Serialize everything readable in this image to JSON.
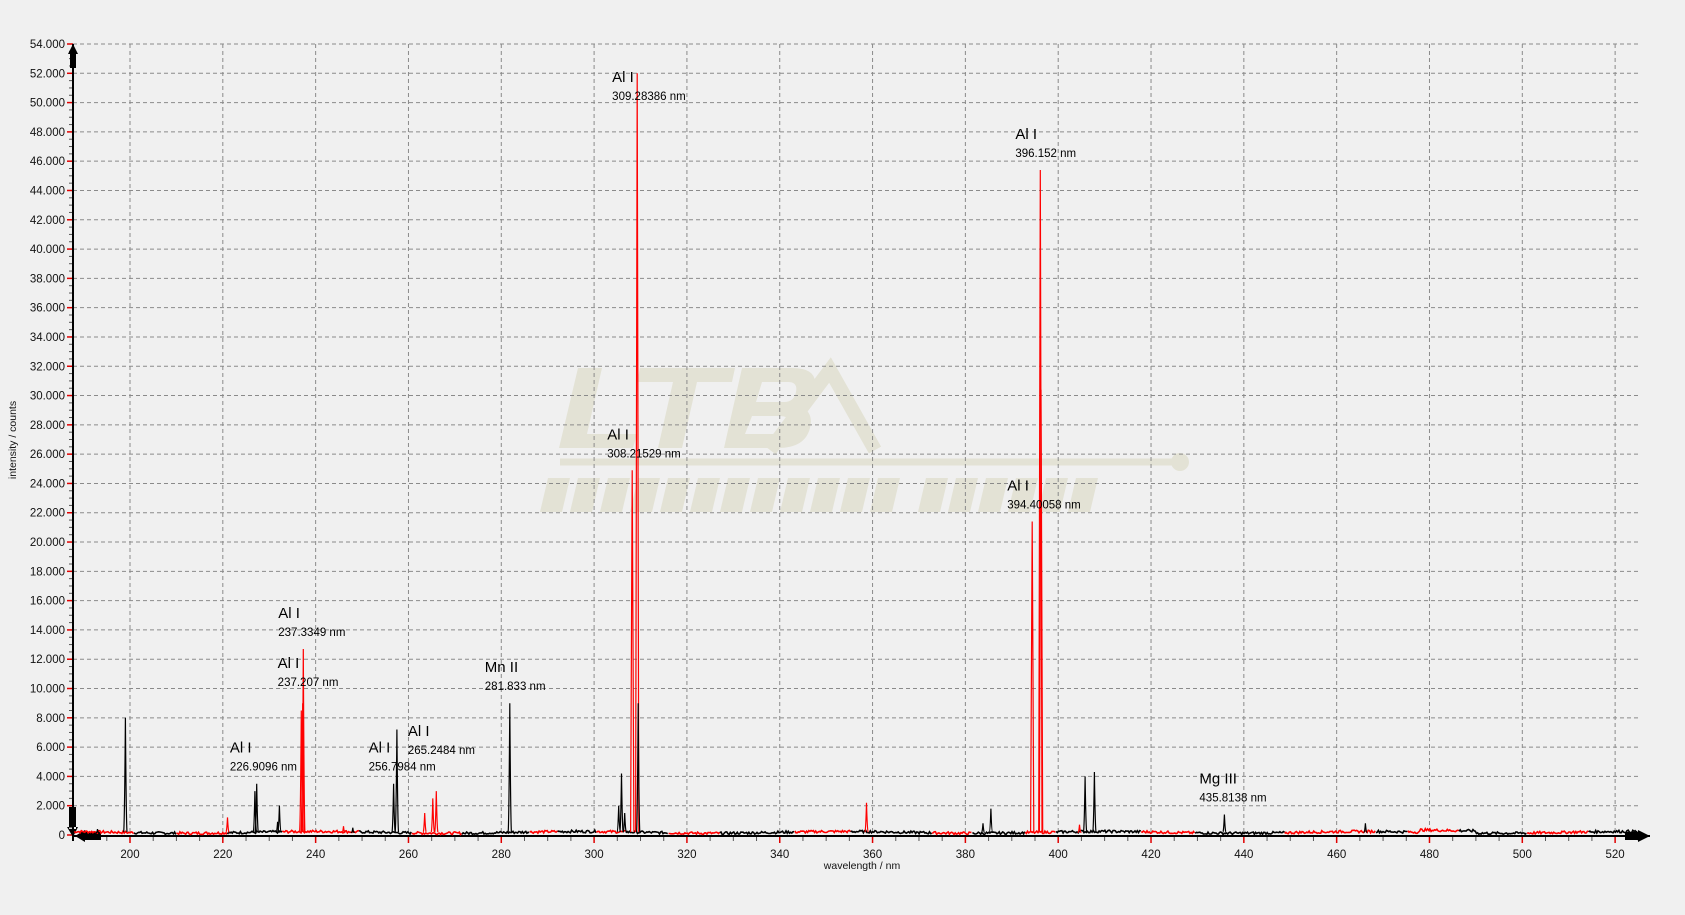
{
  "chart_data": {
    "type": "line",
    "title": "",
    "xlabel": "wavelength / nm",
    "ylabel": "intensity / counts",
    "xlim": [
      188,
      526
    ],
    "ylim": [
      0,
      54000
    ],
    "x_ticks": [
      200,
      220,
      240,
      260,
      280,
      300,
      320,
      340,
      360,
      380,
      400,
      420,
      440,
      460,
      480,
      500,
      520
    ],
    "y_ticks": [
      "0",
      "2.000",
      "4.000",
      "6.000",
      "8.000",
      "10.000",
      "12.000",
      "14.000",
      "16.000",
      "18.000",
      "20.000",
      "22.000",
      "24.000",
      "26.000",
      "28.000",
      "30.000",
      "32.000",
      "34.000",
      "36.000",
      "38.000",
      "40.000",
      "42.000",
      "44.000",
      "46.000",
      "48.000",
      "50.000",
      "52.000",
      "54.000"
    ],
    "grid": true,
    "colors": {
      "series_a": "#ff0000",
      "series_b": "#000000",
      "grid": "#8a8a8a",
      "background": "#f0f0f0",
      "watermark": "#d9d8bf"
    },
    "series": [
      {
        "color": "#ff0000",
        "peaks": [
          {
            "x": 221.0,
            "y": 1200
          },
          {
            "x": 236.9,
            "y": 8500
          },
          {
            "x": 237.207,
            "y": 9000
          },
          {
            "x": 237.3349,
            "y": 12700
          },
          {
            "x": 246.0,
            "y": 600
          },
          {
            "x": 263.5,
            "y": 1500
          },
          {
            "x": 265.2484,
            "y": 2500
          },
          {
            "x": 266.0,
            "y": 3000
          },
          {
            "x": 308.21529,
            "y": 24900
          },
          {
            "x": 309.28386,
            "y": 52000
          },
          {
            "x": 358.7,
            "y": 2200
          },
          {
            "x": 394.40058,
            "y": 21400
          },
          {
            "x": 396.152,
            "y": 45400
          },
          {
            "x": 396.3,
            "y": 30400
          },
          {
            "x": 404.6,
            "y": 700
          }
        ]
      },
      {
        "color": "#000000",
        "peaks": [
          {
            "x": 193.0,
            "y": 400
          },
          {
            "x": 199.0,
            "y": 8000
          },
          {
            "x": 226.9096,
            "y": 3000
          },
          {
            "x": 227.3,
            "y": 3500
          },
          {
            "x": 231.8,
            "y": 900
          },
          {
            "x": 232.2,
            "y": 2000
          },
          {
            "x": 248.0,
            "y": 500
          },
          {
            "x": 256.7984,
            "y": 3500
          },
          {
            "x": 257.5,
            "y": 7200
          },
          {
            "x": 281.833,
            "y": 9000
          },
          {
            "x": 305.3,
            "y": 2000
          },
          {
            "x": 305.9,
            "y": 4200
          },
          {
            "x": 306.6,
            "y": 1500
          },
          {
            "x": 309.5,
            "y": 9000
          },
          {
            "x": 383.8,
            "y": 800
          },
          {
            "x": 385.5,
            "y": 1800
          },
          {
            "x": 405.8,
            "y": 4000
          },
          {
            "x": 407.8,
            "y": 4300
          },
          {
            "x": 435.8138,
            "y": 1400
          },
          {
            "x": 466.2,
            "y": 800
          }
        ]
      }
    ],
    "annotations": [
      {
        "element": "Al I",
        "wavelength": "309.28386 nm",
        "x": 309.28386,
        "y": 52000
      },
      {
        "element": "Al I",
        "wavelength": "396.152 nm",
        "x": 396.152,
        "y": 45400
      },
      {
        "element": "Al I",
        "wavelength": "308.21529 nm",
        "x": 308.21529,
        "y": 24900
      },
      {
        "element": "Al I",
        "wavelength": "394.40058 nm",
        "x": 394.40058,
        "y": 21400
      },
      {
        "element": "Al I",
        "wavelength": "237.3349 nm",
        "x": 237.3349,
        "y": 12700
      },
      {
        "element": "Al I",
        "wavelength": "237.207 nm",
        "x": 237.207,
        "y": 9300
      },
      {
        "element": "Mn II",
        "wavelength": "281.833 nm",
        "x": 281.833,
        "y": 9000
      },
      {
        "element": "Al I",
        "wavelength": "226.9096 nm",
        "x": 226.9096,
        "y": 3500
      },
      {
        "element": "Al I",
        "wavelength": "256.7984 nm",
        "x": 256.7984,
        "y": 3500
      },
      {
        "element": "Al I",
        "wavelength": "265.2484 nm",
        "x": 265.2484,
        "y": 3000
      },
      {
        "element": "Mg III",
        "wavelength": "435.8138 nm",
        "x": 435.8138,
        "y": 1400
      }
    ],
    "watermark": {
      "logo": "LTB",
      "text": "LASERTECHNIK BERLIN"
    }
  }
}
